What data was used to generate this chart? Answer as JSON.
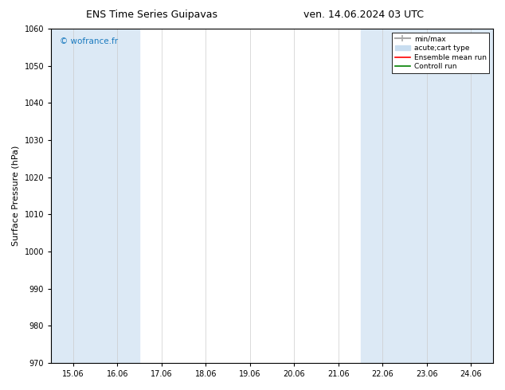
{
  "title_left": "ENS Time Series Guipavas",
  "title_right": "ven. 14.06.2024 03 UTC",
  "ylabel": "Surface Pressure (hPa)",
  "ylim": [
    970,
    1060
  ],
  "yticks": [
    970,
    980,
    990,
    1000,
    1010,
    1020,
    1030,
    1040,
    1050,
    1060
  ],
  "xlabel_ticks": [
    "15.06",
    "16.06",
    "17.06",
    "18.06",
    "19.06",
    "20.06",
    "21.06",
    "22.06",
    "23.06",
    "24.06"
  ],
  "x_positions": [
    0,
    1,
    2,
    3,
    4,
    5,
    6,
    7,
    8,
    9
  ],
  "shaded_bands": [
    {
      "xmin": -0.5,
      "xmax": 1.5,
      "color": "#dce9f5"
    },
    {
      "xmin": 6.5,
      "xmax": 9.5,
      "color": "#dce9f5"
    }
  ],
  "thin_vlines_x": [
    0,
    1,
    2,
    3,
    4,
    5,
    6,
    7,
    8,
    9
  ],
  "copyright_text": "© wofrance.fr",
  "copyright_color": "#1a7abf",
  "legend_entries": [
    {
      "label": "min/max",
      "color": "#aaaaaa",
      "lw": 1.5,
      "style": "line_with_ticks"
    },
    {
      "label": "acute;cart type",
      "color": "#c8ddf0",
      "lw": 8,
      "style": "bar"
    },
    {
      "label": "Ensemble mean run",
      "color": "red",
      "lw": 1.2,
      "style": "line"
    },
    {
      "label": "Controll run",
      "color": "green",
      "lw": 1.2,
      "style": "line"
    }
  ],
  "bg_color": "#ffffff",
  "plot_bg_color": "#ffffff",
  "title_fontsize": 9,
  "label_fontsize": 8,
  "tick_fontsize": 7,
  "copyright_fontsize": 7.5,
  "legend_fontsize": 6.5
}
